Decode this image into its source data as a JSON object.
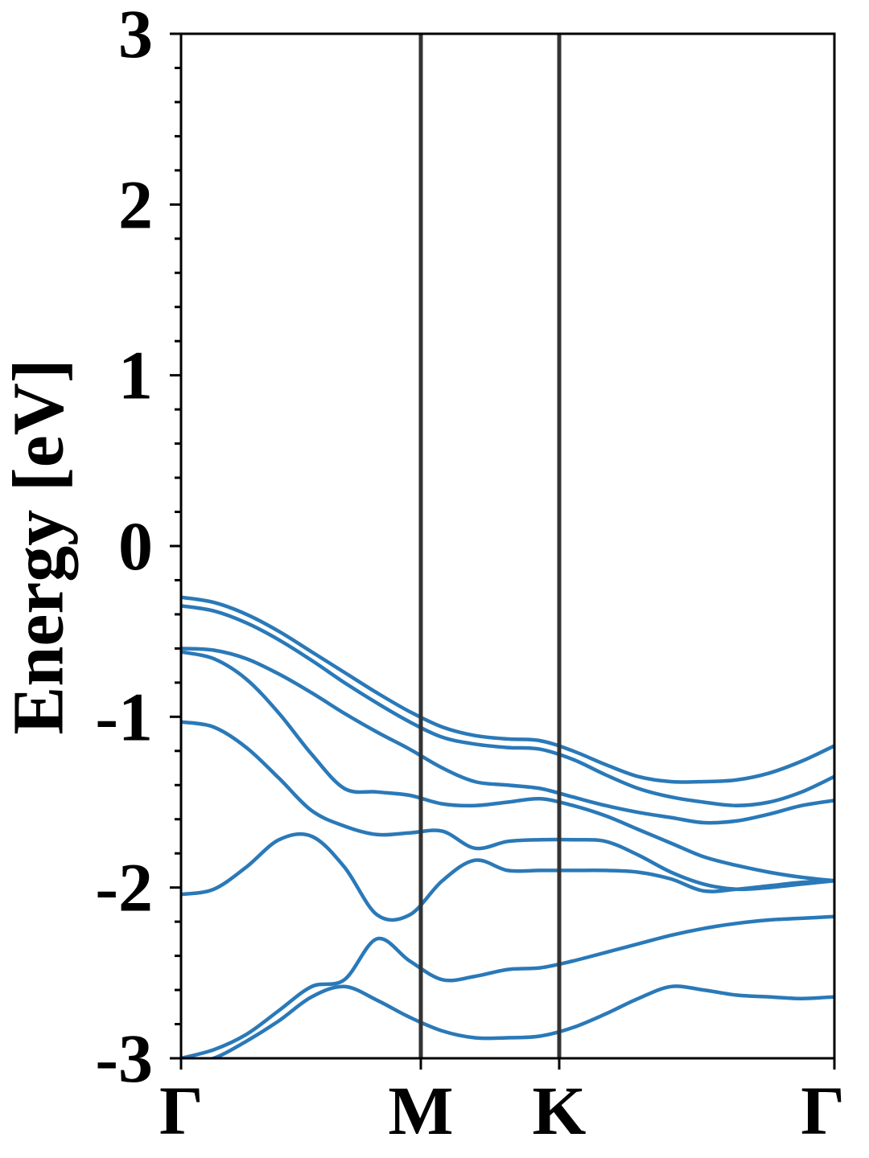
{
  "chart_data": {
    "type": "line",
    "title": "",
    "xlabel": "",
    "ylabel": "Energy [eV]",
    "ylim": [
      -3,
      3
    ],
    "y_ticks": [
      "-3",
      "-2",
      "-1",
      "0",
      "1",
      "2",
      "3"
    ],
    "y_minor_step": 0.2,
    "x_ticks": [
      "Γ",
      "M",
      "K",
      "Γ"
    ],
    "grid": false,
    "band_color": "#2a79b8",
    "divider_color": "#333333",
    "series": [
      {
        "x": [
          0.0,
          0.05,
          0.1,
          0.15,
          0.2,
          0.25,
          0.3,
          0.35,
          0.4,
          0.45,
          0.5,
          0.55,
          0.6,
          0.65,
          0.7,
          0.75,
          0.8,
          0.85,
          0.9,
          0.95,
          1.0
        ],
        "values": [
          -0.3,
          -0.33,
          -0.4,
          -0.5,
          -0.62,
          -0.74,
          -0.86,
          -0.97,
          -1.06,
          -1.11,
          -1.13,
          -1.14,
          -1.2,
          -1.28,
          -1.35,
          -1.38,
          -1.38,
          -1.37,
          -1.33,
          -1.26,
          -1.17
        ]
      },
      {
        "x": [
          0.0,
          0.05,
          0.1,
          0.15,
          0.2,
          0.25,
          0.3,
          0.35,
          0.4,
          0.45,
          0.5,
          0.55,
          0.6,
          0.65,
          0.7,
          0.75,
          0.8,
          0.85,
          0.9,
          0.95,
          1.0
        ],
        "values": [
          -0.35,
          -0.38,
          -0.45,
          -0.55,
          -0.67,
          -0.8,
          -0.92,
          -1.03,
          -1.12,
          -1.16,
          -1.18,
          -1.19,
          -1.25,
          -1.34,
          -1.42,
          -1.47,
          -1.5,
          -1.52,
          -1.5,
          -1.44,
          -1.35
        ]
      },
      {
        "x": [
          0.0,
          0.05,
          0.1,
          0.15,
          0.2,
          0.25,
          0.3,
          0.35,
          0.4,
          0.45,
          0.5,
          0.55,
          0.6,
          0.65,
          0.7,
          0.75,
          0.8,
          0.85,
          0.9,
          0.95,
          1.0
        ],
        "values": [
          -0.6,
          -0.61,
          -0.66,
          -0.75,
          -0.86,
          -0.98,
          -1.09,
          -1.19,
          -1.3,
          -1.38,
          -1.4,
          -1.42,
          -1.47,
          -1.52,
          -1.56,
          -1.59,
          -1.62,
          -1.61,
          -1.57,
          -1.52,
          -1.49
        ]
      },
      {
        "x": [
          0.0,
          0.05,
          0.1,
          0.15,
          0.2,
          0.25,
          0.3,
          0.35,
          0.4,
          0.45,
          0.5,
          0.55,
          0.6,
          0.65,
          0.7,
          0.75,
          0.8,
          0.85,
          0.9,
          0.95,
          1.0
        ],
        "values": [
          -0.62,
          -0.66,
          -0.78,
          -0.98,
          -1.22,
          -1.42,
          -1.44,
          -1.46,
          -1.51,
          -1.52,
          -1.5,
          -1.48,
          -1.52,
          -1.58,
          -1.66,
          -1.74,
          -1.82,
          -1.87,
          -1.91,
          -1.94,
          -1.96
        ]
      },
      {
        "x": [
          0.0,
          0.05,
          0.1,
          0.15,
          0.2,
          0.25,
          0.3,
          0.35,
          0.4,
          0.45,
          0.5,
          0.55,
          0.6,
          0.65,
          0.7,
          0.75,
          0.8,
          0.85,
          0.9,
          0.95,
          1.0
        ],
        "values": [
          -1.03,
          -1.06,
          -1.18,
          -1.36,
          -1.55,
          -1.64,
          -1.69,
          -1.68,
          -1.67,
          -1.77,
          -1.73,
          -1.72,
          -1.72,
          -1.73,
          -1.81,
          -1.91,
          -1.98,
          -2.01,
          -2.0,
          -1.98,
          -1.96
        ]
      },
      {
        "x": [
          0.0,
          0.05,
          0.1,
          0.15,
          0.2,
          0.25,
          0.3,
          0.35,
          0.4,
          0.45,
          0.5,
          0.55,
          0.6,
          0.65,
          0.7,
          0.75,
          0.8,
          0.85,
          0.9,
          0.95,
          1.0
        ],
        "values": [
          -2.04,
          -2.01,
          -1.88,
          -1.72,
          -1.7,
          -1.88,
          -2.16,
          -2.16,
          -1.96,
          -1.84,
          -1.9,
          -1.9,
          -1.9,
          -1.9,
          -1.91,
          -1.95,
          -2.02,
          -2.01,
          -1.99,
          -1.97,
          -1.96
        ]
      },
      {
        "x": [
          0.0,
          0.05,
          0.1,
          0.15,
          0.2,
          0.25,
          0.3,
          0.35,
          0.4,
          0.45,
          0.5,
          0.55,
          0.6,
          0.65,
          0.7,
          0.75,
          0.8,
          0.85,
          0.9,
          0.95,
          1.0
        ],
        "values": [
          -3.0,
          -2.95,
          -2.86,
          -2.72,
          -2.58,
          -2.54,
          -2.3,
          -2.43,
          -2.54,
          -2.52,
          -2.48,
          -2.47,
          -2.43,
          -2.38,
          -2.33,
          -2.28,
          -2.24,
          -2.21,
          -2.19,
          -2.18,
          -2.17
        ]
      },
      {
        "x": [
          0.0,
          0.05,
          0.1,
          0.15,
          0.2,
          0.25,
          0.3,
          0.35,
          0.4,
          0.45,
          0.5,
          0.55,
          0.6,
          0.65,
          0.7,
          0.75,
          0.8,
          0.85,
          0.9,
          0.95,
          1.0
        ],
        "values": [
          -3.04,
          -3.0,
          -2.9,
          -2.78,
          -2.64,
          -2.58,
          -2.66,
          -2.76,
          -2.84,
          -2.88,
          -2.88,
          -2.87,
          -2.82,
          -2.74,
          -2.65,
          -2.58,
          -2.6,
          -2.63,
          -2.64,
          -2.65,
          -2.64
        ]
      }
    ]
  }
}
